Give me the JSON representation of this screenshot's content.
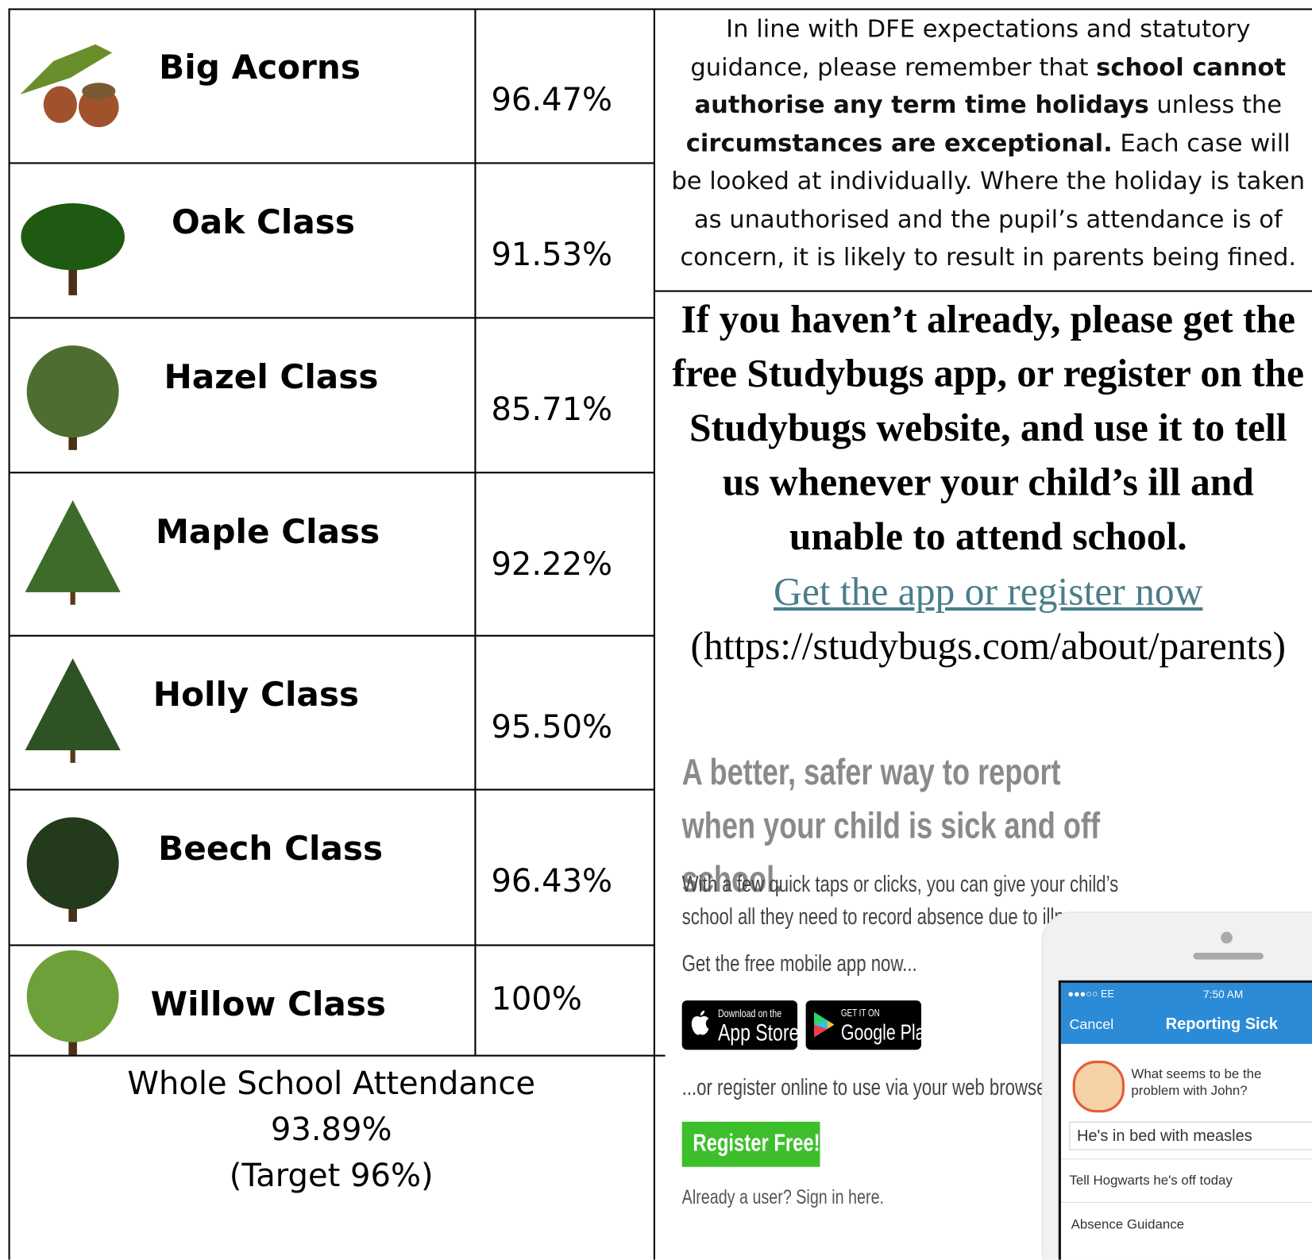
{
  "classes": [
    {
      "name": "Big Acorns",
      "attendance": "96.47%"
    },
    {
      "name": "Oak Class",
      "attendance": "91.53%"
    },
    {
      "name": "Hazel Class",
      "attendance": "85.71%"
    },
    {
      "name": "Maple Class",
      "attendance": "92.22%"
    },
    {
      "name": "Holly Class",
      "attendance": "95.50%"
    },
    {
      "name": "Beech Class",
      "attendance": "96.43%"
    },
    {
      "name": "Willow Class",
      "attendance": "100%"
    }
  ],
  "whole_school": {
    "label": "Whole School Attendance",
    "value": "93.89%",
    "target": "(Target 96%)"
  },
  "notice": [
    {
      "text": "In line with DFE expectations and statutory guidance, please remember that ",
      "bold": false
    },
    {
      "text": "school cannot authorise any term time holidays",
      "bold": true
    },
    {
      "text": " unless the ",
      "bold": false
    },
    {
      "text": "circumstances are exceptional.",
      "bold": true
    },
    {
      "text": " Each case will be looked at individually. Where the holiday is taken as unauthorised and the pupil’s attendance is of concern, it is likely to result in parents being fined.",
      "bold": false
    }
  ],
  "studybugs": {
    "heading": "If you haven’t already, please get the free Studybugs app, or register on the Studybugs website, and use it to tell us whenever your child’s ill and unable to attend school.",
    "link": "Get the app or register now",
    "url": "(https://studybugs.com/about/parents)"
  },
  "advert": {
    "headline": "A better, safer way to report when your child is sick and off school.",
    "body": "With a few quick taps or clicks, you can give your child’s school all they need to record absence due to illness.",
    "get_app": "Get the free mobile app now...",
    "app_store": {
      "small": "Download on the",
      "big": "App Store"
    },
    "google_play": {
      "small": "GET IT ON",
      "big": "Google Play"
    },
    "register_text": "...or register online to use via your web browser:",
    "register_button": "Register Free!",
    "sign_in": "Already a user? Sign in here."
  },
  "phone": {
    "carrier": "●●●○○ EE",
    "time": "7:50 AM",
    "cancel": "Cancel",
    "screen_title": "Reporting Sick",
    "question": "What seems to be the problem with John?",
    "input": "He's in bed with measles",
    "option_1": "Tell Hogwarts he's off today",
    "option_2": "Absence Guidance"
  }
}
